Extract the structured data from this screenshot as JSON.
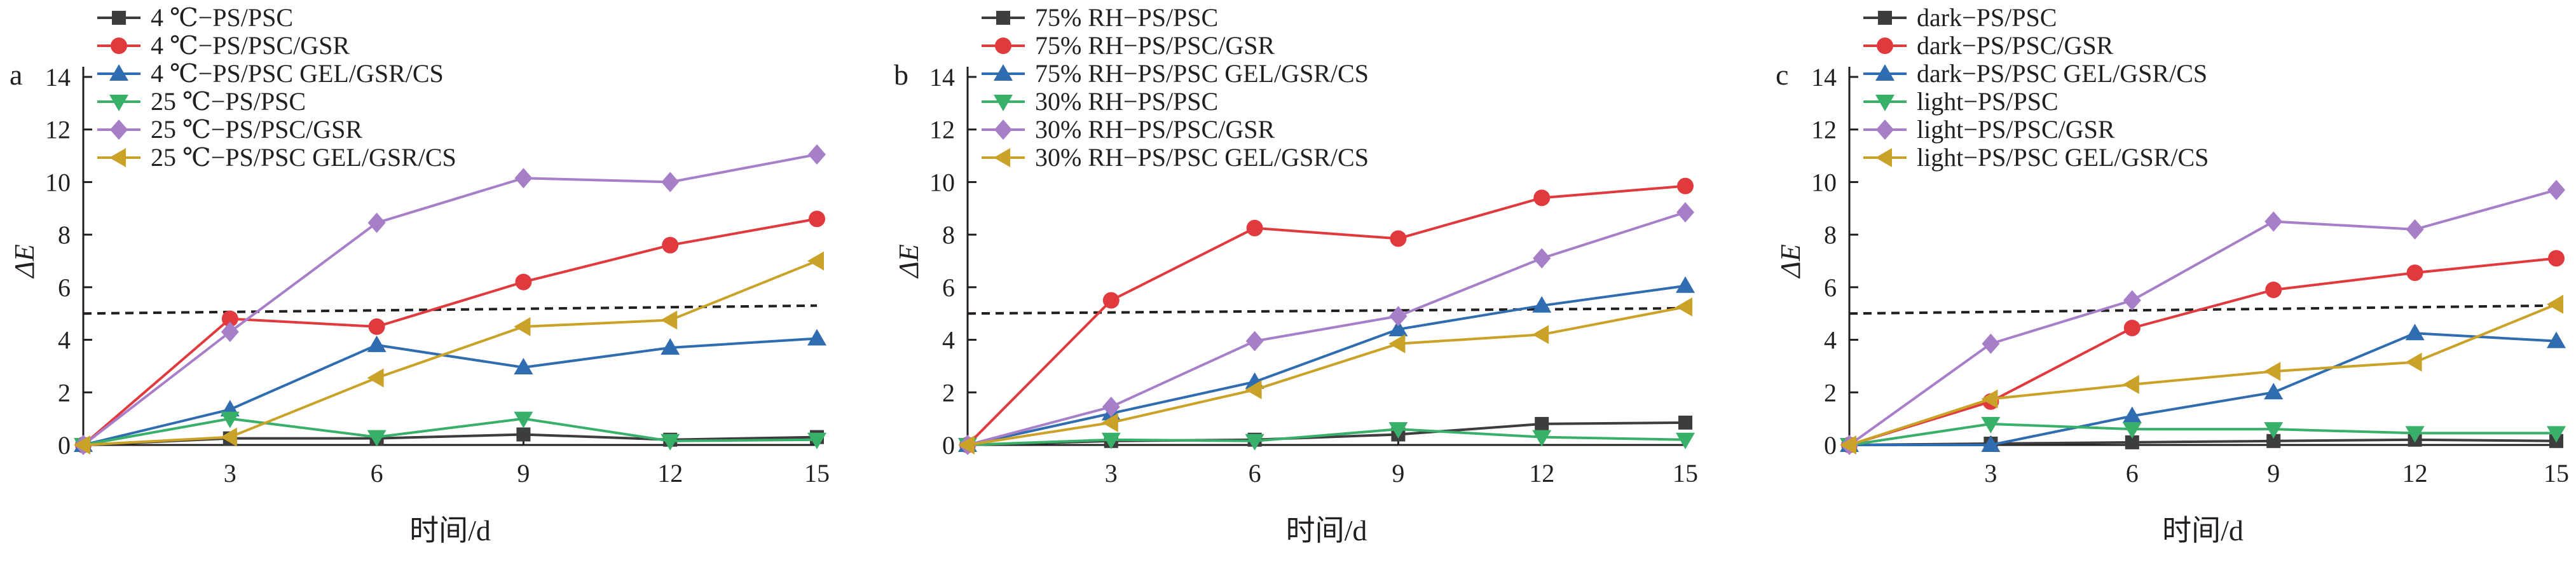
{
  "chart_data": [
    {
      "type": "line",
      "panel_label": "a",
      "xlabel": "时间/d",
      "ylabel": "ΔE",
      "xlim": [
        0,
        15
      ],
      "ylim": [
        0,
        14
      ],
      "x_ticks": [
        3,
        6,
        9,
        12,
        15
      ],
      "y_ticks": [
        0,
        2,
        4,
        6,
        8,
        10,
        12,
        14
      ],
      "grid": false,
      "legend_position": "top-left",
      "threshold": [
        [
          0,
          5.0
        ],
        [
          15,
          5.3
        ]
      ],
      "x": [
        0,
        3,
        6,
        9,
        12,
        15
      ],
      "series": [
        {
          "name": "4 ℃−PS/PSC",
          "color": "#3d3d3d",
          "marker": "square",
          "values": [
            0,
            0.25,
            0.25,
            0.4,
            0.2,
            0.3
          ]
        },
        {
          "name": "4 ℃−PS/PSC/GSR",
          "color": "#e03a3e",
          "marker": "circle",
          "values": [
            0,
            4.8,
            4.5,
            6.2,
            7.6,
            8.6
          ]
        },
        {
          "name": "4 ℃−PS/PSC GEL/GSR/CS",
          "color": "#2f6db0",
          "marker": "triangle-up",
          "values": [
            0,
            1.35,
            3.8,
            2.95,
            3.7,
            4.05
          ]
        },
        {
          "name": "25 ℃−PS/PSC",
          "color": "#38b06a",
          "marker": "triangle-down",
          "values": [
            0,
            1.0,
            0.3,
            1.0,
            0.15,
            0.2
          ]
        },
        {
          "name": "25 ℃−PS/PSC/GSR",
          "color": "#a77fc9",
          "marker": "diamond",
          "values": [
            0,
            4.3,
            8.45,
            10.15,
            10.0,
            11.05
          ]
        },
        {
          "name": "25 ℃−PS/PSC GEL/GSR/CS",
          "color": "#c9a227",
          "marker": "triangle-left",
          "values": [
            0,
            0.3,
            2.55,
            4.5,
            4.75,
            7.0
          ]
        }
      ]
    },
    {
      "type": "line",
      "panel_label": "b",
      "xlabel": "时间/d",
      "ylabel": "ΔE",
      "xlim": [
        0,
        15
      ],
      "ylim": [
        0,
        14
      ],
      "x_ticks": [
        3,
        6,
        9,
        12,
        15
      ],
      "y_ticks": [
        0,
        2,
        4,
        6,
        8,
        10,
        12,
        14
      ],
      "grid": false,
      "legend_position": "top-left",
      "threshold": [
        [
          0,
          5.0
        ],
        [
          15,
          5.2
        ]
      ],
      "x": [
        0,
        3,
        6,
        9,
        12,
        15
      ],
      "series": [
        {
          "name": "75% RH−PS/PSC",
          "color": "#3d3d3d",
          "marker": "square",
          "values": [
            0,
            0.15,
            0.2,
            0.4,
            0.8,
            0.85
          ]
        },
        {
          "name": "75% RH−PS/PSC/GSR",
          "color": "#e03a3e",
          "marker": "circle",
          "values": [
            0,
            5.5,
            8.25,
            7.85,
            9.4,
            9.85
          ]
        },
        {
          "name": "75% RH−PS/PSC GEL/GSR/CS",
          "color": "#2f6db0",
          "marker": "triangle-up",
          "values": [
            0,
            1.2,
            2.4,
            4.4,
            5.3,
            6.05
          ]
        },
        {
          "name": "30% RH−PS/PSC",
          "color": "#38b06a",
          "marker": "triangle-down",
          "values": [
            0,
            0.2,
            0.15,
            0.6,
            0.3,
            0.2
          ]
        },
        {
          "name": "30% RH−PS/PSC/GSR",
          "color": "#a77fc9",
          "marker": "diamond",
          "values": [
            0,
            1.45,
            3.95,
            4.9,
            7.1,
            8.85
          ]
        },
        {
          "name": "30% RH−PS/PSC GEL/GSR/CS",
          "color": "#c9a227",
          "marker": "triangle-left",
          "values": [
            0,
            0.85,
            2.1,
            3.85,
            4.2,
            5.25
          ]
        }
      ]
    },
    {
      "type": "line",
      "panel_label": "c",
      "xlabel": "时间/d",
      "ylabel": "ΔE",
      "xlim": [
        0,
        15
      ],
      "ylim": [
        0,
        14
      ],
      "x_ticks": [
        3,
        6,
        9,
        12,
        15
      ],
      "y_ticks": [
        0,
        2,
        4,
        6,
        8,
        10,
        12,
        14
      ],
      "grid": false,
      "legend_position": "top-left",
      "threshold": [
        [
          0,
          5.0
        ],
        [
          15,
          5.3
        ]
      ],
      "x": [
        0,
        3,
        6,
        9,
        12,
        15
      ],
      "series": [
        {
          "name": "dark−PS/PSC",
          "color": "#3d3d3d",
          "marker": "square",
          "values": [
            0,
            0.05,
            0.1,
            0.15,
            0.2,
            0.15
          ]
        },
        {
          "name": "dark−PS/PSC/GSR",
          "color": "#e03a3e",
          "marker": "circle",
          "values": [
            0,
            1.65,
            4.45,
            5.9,
            6.55,
            7.1
          ]
        },
        {
          "name": "dark−PS/PSC GEL/GSR/CS",
          "color": "#2f6db0",
          "marker": "triangle-up",
          "values": [
            0,
            0.0,
            1.1,
            2.0,
            4.25,
            3.95
          ]
        },
        {
          "name": "light−PS/PSC",
          "color": "#38b06a",
          "marker": "triangle-down",
          "values": [
            0,
            0.8,
            0.6,
            0.6,
            0.45,
            0.45
          ]
        },
        {
          "name": "light−PS/PSC/GSR",
          "color": "#a77fc9",
          "marker": "diamond",
          "values": [
            0,
            3.85,
            5.5,
            8.5,
            8.2,
            9.7
          ]
        },
        {
          "name": "light−PS/PSC GEL/GSR/CS",
          "color": "#c9a227",
          "marker": "triangle-left",
          "values": [
            0,
            1.75,
            2.3,
            2.8,
            3.15,
            5.35
          ]
        }
      ]
    }
  ]
}
